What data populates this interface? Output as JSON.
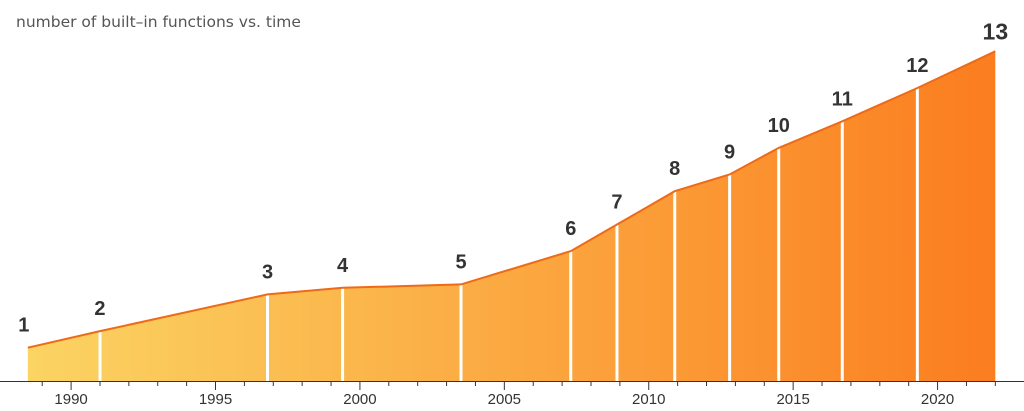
{
  "title": "number of built–in functions vs. time",
  "chart_data": {
    "type": "area",
    "title": "number of built–in functions vs. time",
    "xlabel": "",
    "ylabel": "",
    "xlim": [
      1988.3,
      2022.3
    ],
    "x_ticks": [
      "1990",
      "1995",
      "2000",
      "2005",
      "2010",
      "2015",
      "2020"
    ],
    "x_tick_values": [
      1990,
      1995,
      2000,
      2005,
      2010,
      2015,
      2020
    ],
    "versions": [
      {
        "label": "1",
        "year": 1988.5,
        "value": 0.1
      },
      {
        "label": "2",
        "year": 1991.0,
        "value": 0.15
      },
      {
        "label": "3",
        "year": 1996.8,
        "value": 0.26
      },
      {
        "label": "4",
        "year": 1999.4,
        "value": 0.28
      },
      {
        "label": "5",
        "year": 2003.5,
        "value": 0.29
      },
      {
        "label": "6",
        "year": 2007.3,
        "value": 0.39
      },
      {
        "label": "7",
        "year": 2008.9,
        "value": 0.47
      },
      {
        "label": "8",
        "year": 2010.9,
        "value": 0.57
      },
      {
        "label": "9",
        "year": 2012.8,
        "value": 0.62
      },
      {
        "label": "10",
        "year": 2014.5,
        "value": 0.7
      },
      {
        "label": "11",
        "year": 2016.7,
        "value": 0.78
      },
      {
        "label": "12",
        "year": 2019.3,
        "value": 0.88
      },
      {
        "label": "13",
        "year": 2022.0,
        "value": 0.99
      }
    ],
    "colors": {
      "fill_start": "#fbd463",
      "fill_end": "#fb7d1f",
      "line": "#ee6a18",
      "divider": "#ffffff",
      "axis": "#333333"
    },
    "grid": false,
    "legend": "none"
  }
}
